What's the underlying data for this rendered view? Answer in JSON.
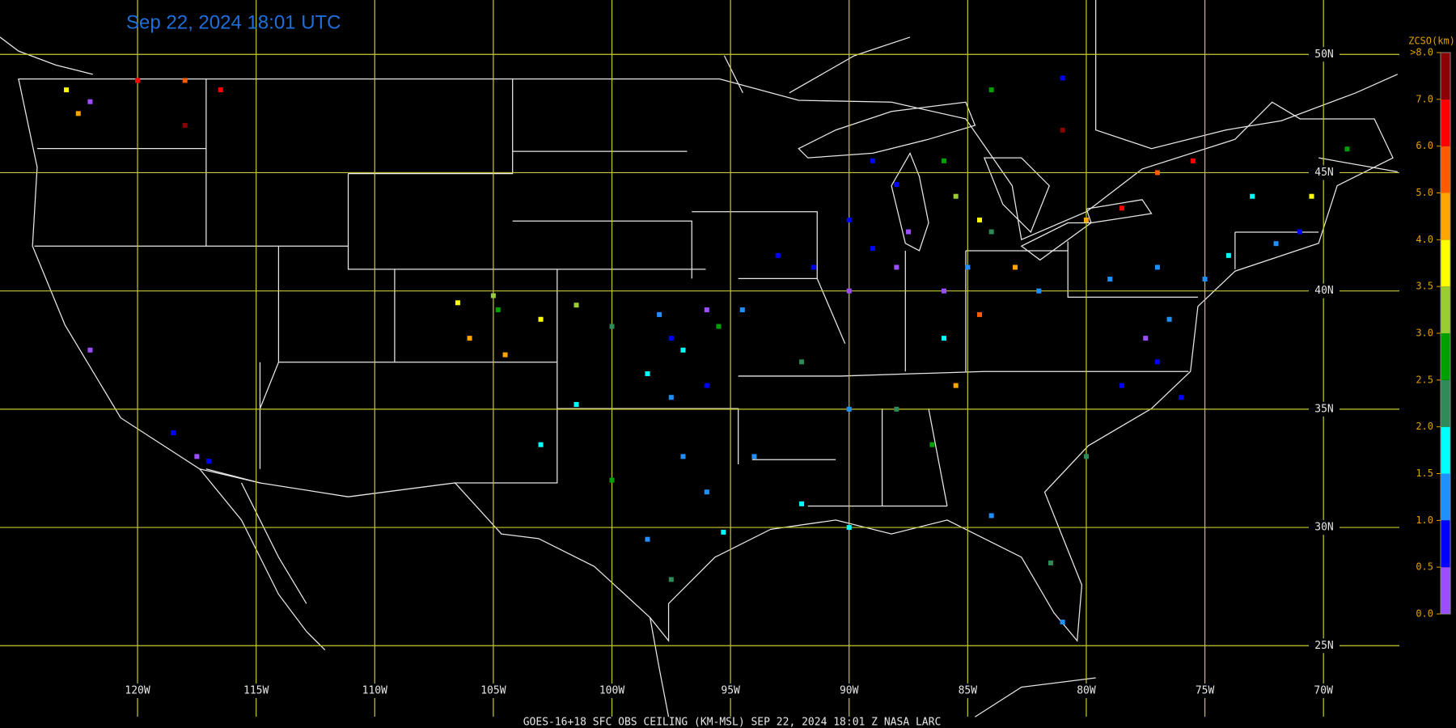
{
  "chart_data": {
    "type": "map",
    "title": "Sep 22, 2024 18:01 UTC",
    "footer": "GOES-16+18  SFC OBS CEILING (KM-MSL)   SEP 22, 2024 18:01 Z   NASA LARC",
    "xlim": [
      -125.8,
      -66.8
    ],
    "ylim": [
      22,
      52.3
    ],
    "xticks": [
      {
        "value": -120,
        "label": "120W"
      },
      {
        "value": -115,
        "label": "115W"
      },
      {
        "value": -110,
        "label": "110W"
      },
      {
        "value": -105,
        "label": "105W"
      },
      {
        "value": -100,
        "label": "100W"
      },
      {
        "value": -95,
        "label": "95W"
      },
      {
        "value": -90,
        "label": "90W"
      },
      {
        "value": -85,
        "label": "85W"
      },
      {
        "value": -80,
        "label": "80W"
      },
      {
        "value": -75,
        "label": "75W"
      },
      {
        "value": -70,
        "label": "70W"
      }
    ],
    "yticks": [
      {
        "value": 25,
        "label": "25N"
      },
      {
        "value": 30,
        "label": "30N"
      },
      {
        "value": 35,
        "label": "35N"
      },
      {
        "value": 40,
        "label": "40N"
      },
      {
        "value": 45,
        "label": "45N"
      },
      {
        "value": 50,
        "label": "50N"
      }
    ],
    "grid": true,
    "grid_color": "#c8c832",
    "colorbar": {
      "title": "ZCSO(km)",
      "bounds": [
        {
          "value": 0,
          "label": "0.0"
        },
        {
          "value": 0.5,
          "label": "0.5"
        },
        {
          "value": 1,
          "label": "1.0"
        },
        {
          "value": 1.5,
          "label": "1.5"
        },
        {
          "value": 2,
          "label": "2.0"
        },
        {
          "value": 2.5,
          "label": "2.5"
        },
        {
          "value": 3,
          "label": "3.0"
        },
        {
          "value": 3.5,
          "label": "3.5"
        },
        {
          "value": 4,
          "label": "4.0"
        },
        {
          "value": 5,
          "label": "5.0"
        },
        {
          "value": 6,
          "label": "6.0"
        },
        {
          "value": 7,
          "label": "7.0"
        },
        {
          "value": 8,
          "label": ">8.0"
        }
      ],
      "colors": [
        "#9b4dff",
        "#0000ff",
        "#1e90ff",
        "#00ffff",
        "#2e8b57",
        "#00a000",
        "#9acd32",
        "#ffff00",
        "#ffa500",
        "#ff5a00",
        "#ff0000",
        "#8b0000"
      ]
    },
    "x": [
      -106.5,
      -105,
      -104.8,
      -103,
      -106,
      -104.5,
      -101.5,
      -100,
      -98,
      -97.5,
      -96,
      -95.5,
      -94.5,
      -97,
      -98.5,
      -97.5,
      -96,
      -101.5,
      -103,
      -100,
      -97,
      -96,
      -98.5,
      -95.3,
      -97.5,
      -93,
      -91.5,
      -90,
      -89,
      -88,
      -87.5,
      -86,
      -85,
      -84,
      -85.5,
      -86,
      -84.5,
      -88,
      -90,
      -89,
      -83,
      -82,
      -84.5,
      -86,
      -85.5,
      -88,
      -90,
      -92,
      -94,
      -92,
      -90,
      -86.5,
      -84,
      -81.5,
      -81,
      -77.5,
      -77,
      -76.5,
      -78.5,
      -76,
      -79,
      -77,
      -75,
      -74,
      -72,
      -71,
      -73,
      -70.5,
      -69,
      -80,
      -78.5,
      -80,
      -122.5,
      -123,
      -122,
      -120,
      -116.5,
      -118,
      -122,
      -118.5,
      -117.5,
      -117,
      -118,
      -81,
      -75.5,
      -77,
      -84,
      -81
    ],
    "y": [
      39.5,
      39.8,
      39.2,
      38.8,
      38,
      37.3,
      39.4,
      38.5,
      39,
      38,
      39.2,
      38.5,
      39.2,
      37.5,
      36.5,
      35.5,
      36,
      35.2,
      33.5,
      32,
      33,
      31.5,
      29.5,
      29.8,
      27.8,
      41.5,
      41,
      40,
      41.8,
      41,
      42.5,
      40,
      41,
      42.5,
      44,
      45.5,
      43,
      44.5,
      43,
      45.5,
      41,
      40,
      39,
      38,
      36,
      35,
      35,
      37,
      33,
      31,
      30,
      33.5,
      30.5,
      28.5,
      26,
      38,
      37,
      38.8,
      36,
      35.5,
      40.5,
      41,
      40.5,
      41.5,
      42,
      42.5,
      44,
      44,
      46,
      43,
      43.5,
      33,
      47.5,
      48.5,
      48,
      48.9,
      48.5,
      47,
      37.5,
      34,
      33,
      32.8,
      48.9,
      46.8,
      45.5,
      45,
      48.5,
      49
    ],
    "values": [
      3.8,
      3.3,
      2.8,
      3.6,
      4.2,
      4.5,
      3.4,
      2.4,
      1.2,
      0.8,
      0.4,
      2.6,
      1.3,
      1.6,
      1.7,
      1.2,
      0.9,
      1.8,
      1.6,
      2.7,
      1.4,
      1.2,
      1.1,
      1.6,
      2.2,
      0.8,
      0.7,
      0.4,
      0.8,
      0.3,
      0.4,
      0.2,
      1.3,
      2.4,
      3.2,
      2.6,
      3.7,
      0.8,
      0.9,
      0.7,
      4.6,
      1.4,
      5.5,
      1.7,
      4.3,
      2.2,
      1.3,
      2.3,
      1.2,
      1.5,
      1.5,
      2.7,
      1.3,
      2.1,
      1.2,
      0.3,
      0.8,
      1.2,
      0.9,
      0.9,
      1.3,
      1.2,
      1.3,
      1.6,
      1.2,
      0.8,
      1.7,
      3.8,
      2.9,
      4.5,
      6.3,
      2.4,
      4.8,
      3.6,
      0.4,
      6,
      6,
      7.5,
      0.3,
      0.7,
      0.4,
      0.5,
      5.8,
      7.2,
      6.8,
      5.3,
      2.5,
      0.8
    ]
  }
}
